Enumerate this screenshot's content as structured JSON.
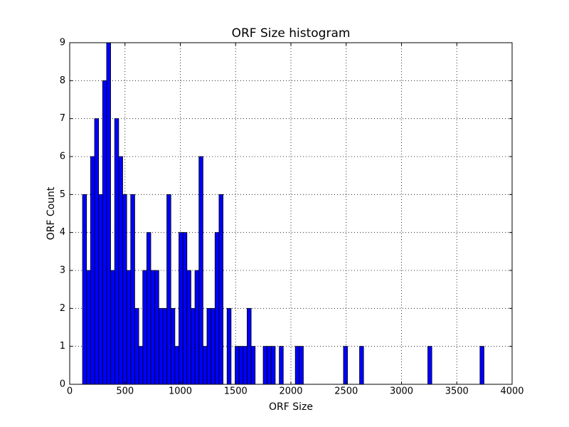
{
  "chart_data": {
    "type": "histogram",
    "title": "ORF Size histogram",
    "x_label": "ORF Size",
    "y_label": "ORF Count",
    "bins": [
      116,
      152.3,
      188.6,
      224.9,
      261.2,
      297.5,
      333.8,
      370.1,
      406.4,
      442.7,
      479,
      515.3,
      551.6,
      587.9,
      624.2,
      660.5,
      696.8,
      733.1,
      769.4,
      805.7,
      842,
      878.3,
      914.6,
      950.9,
      987.2,
      1023.5,
      1059.8,
      1096.1,
      1132.4,
      1168.7,
      1205,
      1241.3,
      1277.6,
      1313.9,
      1350.2,
      1386.5,
      1422.8,
      1459.1,
      1495.4,
      1531.7,
      1568,
      1604.3,
      1640.6,
      1676.9,
      1713.2,
      1749.5,
      1785.8,
      1822.1,
      1858.4,
      1894.7,
      1931,
      1967.3,
      2003.6,
      2039.9,
      2076.2,
      2112.5,
      2148.8,
      2185.1,
      2221.4,
      2257.7,
      2294,
      2330.3,
      2366.6,
      2402.9,
      2439.2,
      2475.5,
      2511.8,
      2548.1,
      2584.4,
      2620.7,
      2657,
      2693.3,
      2729.6,
      2765.9,
      2802.2,
      2838.5,
      2874.8,
      2911.1,
      2947.4,
      2983.7,
      3020,
      3056.3,
      3092.6,
      3128.9,
      3165.2,
      3201.5,
      3237.8,
      3274.1,
      3310.4,
      3346.7,
      3383,
      3419.3,
      3455.6,
      3491.9,
      3528.2,
      3564.5,
      3600.8,
      3637.1,
      3673.4,
      3709.7,
      3746
    ],
    "values": [
      5,
      3,
      6,
      7,
      5,
      8,
      9,
      3,
      7,
      6,
      5,
      3,
      5,
      2,
      1,
      3,
      4,
      3,
      3,
      2,
      2,
      5,
      2,
      1,
      4,
      4,
      3,
      2,
      3,
      6,
      1,
      2,
      2,
      4,
      5,
      0,
      2,
      0,
      1,
      1,
      1,
      2,
      1,
      0,
      0,
      1,
      1,
      1,
      0,
      1,
      0,
      0,
      0,
      1,
      1,
      0,
      0,
      0,
      0,
      0,
      0,
      0,
      0,
      0,
      0,
      1,
      0,
      0,
      0,
      1,
      0,
      0,
      0,
      0,
      0,
      0,
      0,
      0,
      0,
      0,
      0,
      0,
      0,
      0,
      0,
      0,
      1,
      0,
      0,
      0,
      0,
      0,
      0,
      0,
      0,
      0,
      0,
      0,
      0,
      1
    ],
    "color": "#0000ff",
    "edgecolor": "#000000",
    "xlim": [
      0,
      4000
    ],
    "xticks": [
      0,
      500,
      1000,
      1500,
      2000,
      2500,
      3000,
      3500,
      4000
    ],
    "ylim": [
      0,
      9
    ],
    "yticks": [
      0,
      1,
      2,
      3,
      4,
      5,
      6,
      7,
      8,
      9
    ],
    "grid": true
  }
}
